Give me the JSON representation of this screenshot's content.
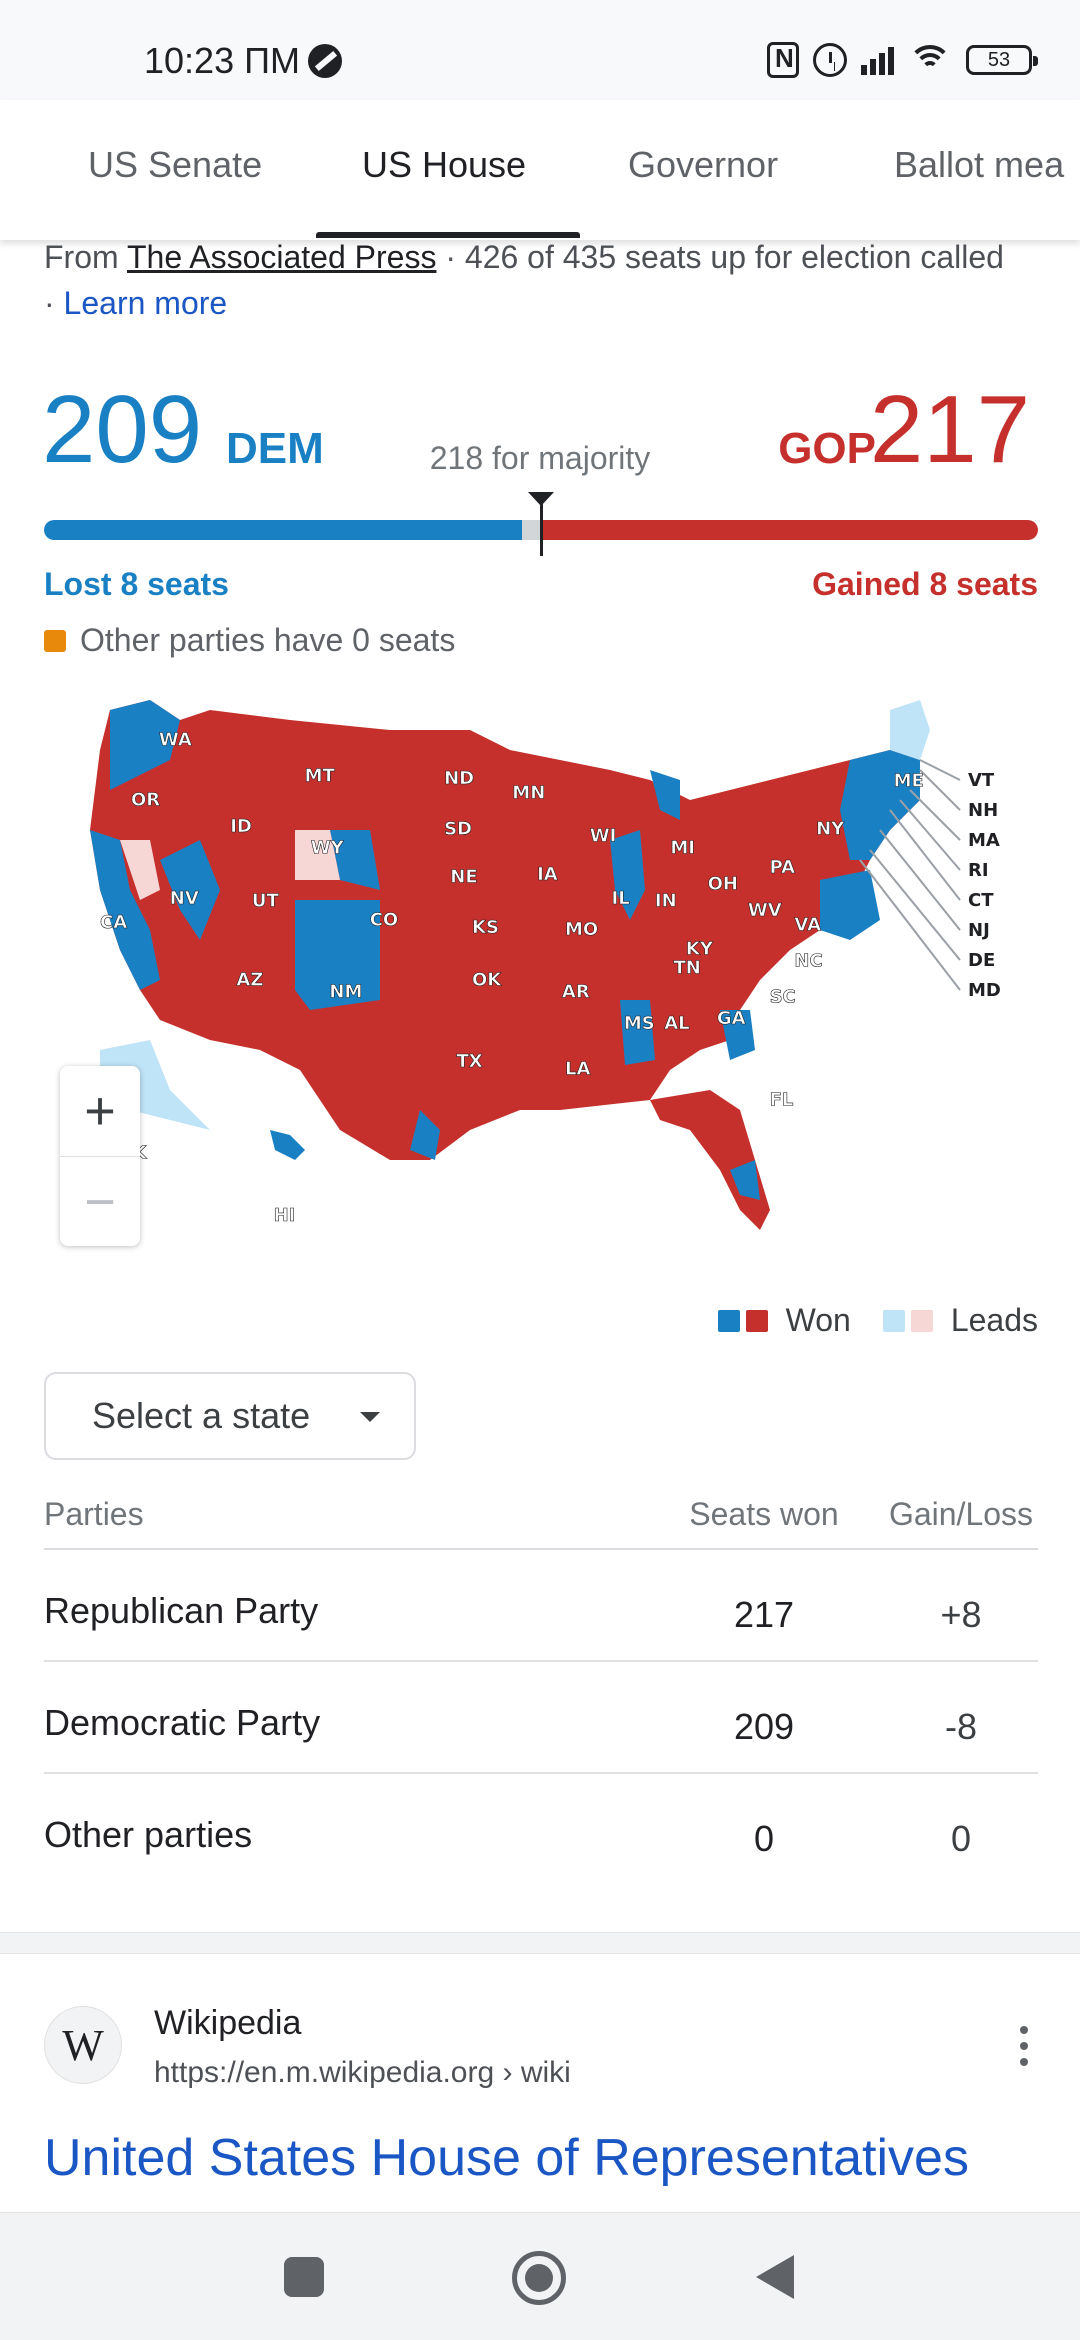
{
  "status_bar": {
    "time": "10:23 ПМ",
    "battery": "53",
    "icons": [
      "dnd-icon",
      "nfc-icon",
      "alarm-icon",
      "signal-icon",
      "wifi-icon",
      "battery-icon"
    ]
  },
  "tabs": [
    {
      "label": "US Senate",
      "active": false
    },
    {
      "label": "US House",
      "active": true
    },
    {
      "label": "Governor",
      "active": false
    },
    {
      "label": "Ballot mea",
      "active": false
    }
  ],
  "source": {
    "prefix": "From ",
    "publisher": "The Associated Press",
    "detail": " · 426 of 435 seats up for election called · ",
    "learn_more": "Learn more"
  },
  "totals": {
    "dem_seats": "209",
    "dem_label": "DEM",
    "gop_seats": "217",
    "gop_label": "GOP",
    "majority": "218 for majority",
    "dem_change": "Lost 8 seats",
    "gop_change": "Gained 8 seats",
    "other_note": "Other parties have 0 seats",
    "total_seats": 435,
    "dem_count": 209,
    "gop_count": 217,
    "majority_count": 218
  },
  "colors": {
    "dem": "#1a80c4",
    "gop": "#c5302c",
    "dem_leads": "#bfe3f7",
    "gop_leads": "#f7d6d6",
    "other": "#e8890c"
  },
  "map": {
    "state_labels": [
      "WA",
      "OR",
      "CA",
      "NV",
      "ID",
      "MT",
      "WY",
      "UT",
      "AZ",
      "CO",
      "NM",
      "ND",
      "SD",
      "NE",
      "KS",
      "OK",
      "TX",
      "MN",
      "IA",
      "MO",
      "AR",
      "LA",
      "WI",
      "IL",
      "MS",
      "MI",
      "IN",
      "KY",
      "TN",
      "AL",
      "OH",
      "WV",
      "GA",
      "PA",
      "VA",
      "NC",
      "SC",
      "FL",
      "NY",
      "ME",
      "AK",
      "HI"
    ],
    "callout_labels": [
      "VT",
      "NH",
      "MA",
      "RI",
      "CT",
      "NJ",
      "DE",
      "MD"
    ],
    "zoom_in": "+",
    "zoom_out": "−"
  },
  "legend": {
    "won": "Won",
    "leads": "Leads"
  },
  "select_state": "Select a state",
  "table": {
    "headers": [
      "Parties",
      "Seats won",
      "Gain/Loss"
    ],
    "rows": [
      {
        "party": "Republican Party",
        "seats": "217",
        "change": "+8"
      },
      {
        "party": "Democratic Party",
        "seats": "209",
        "change": "-8"
      },
      {
        "party": "Other parties",
        "seats": "0",
        "change": "0"
      }
    ]
  },
  "result": {
    "logo": "W",
    "site": "Wikipedia",
    "url": "https://en.m.wikipedia.org › wiki",
    "title": "United States House of Representatives"
  }
}
